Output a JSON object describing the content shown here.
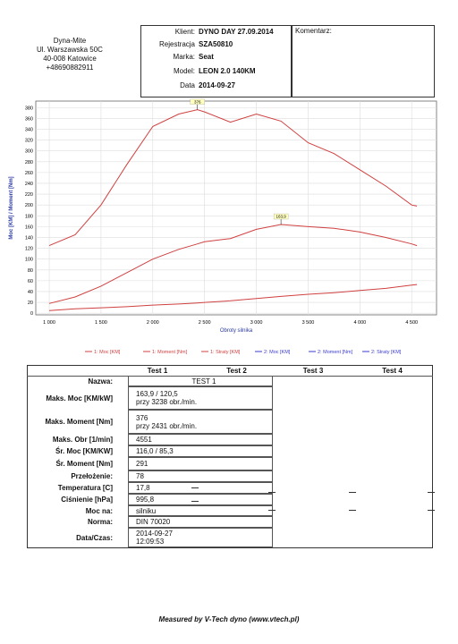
{
  "company": {
    "lines": [
      "Dyna-Mite",
      "Ul. Warszawska 50C",
      "40-008 Katowice",
      "+48690882911"
    ]
  },
  "info": [
    {
      "label": "Klient:",
      "value": "DYNO DAY 27.09.2014"
    },
    {
      "label": "Rejestracja",
      "value": "SZA50810"
    },
    {
      "label": "Marka:",
      "value": "Seat"
    },
    {
      "label": "Model:",
      "value": "LEON 2.0 140KM"
    },
    {
      "label": "Data",
      "value": "2014-09-27"
    }
  ],
  "comment_label": "Komentarz:",
  "chart_data": {
    "type": "line",
    "y_label": "Moc [KM] / Moment [Nm]",
    "x_label": "Obroty silnika",
    "x": [
      1000,
      1250,
      1500,
      1750,
      2000,
      2250,
      2431,
      2500,
      2750,
      3000,
      3238,
      3500,
      3750,
      4000,
      4250,
      4500,
      4551
    ],
    "series": [
      {
        "name": "1: Moc [KM]",
        "color": "#d04040",
        "values": [
          18,
          30,
          50,
          75,
          100,
          118,
          128,
          132,
          138,
          155,
          163.9,
          160,
          157,
          150,
          140,
          128,
          125
        ]
      },
      {
        "name": "1: Moment [Nm]",
        "color": "#d04040",
        "values": [
          125,
          145,
          200,
          275,
          345,
          368,
          376,
          372,
          353,
          368,
          355,
          315,
          295,
          265,
          235,
          200,
          198
        ]
      },
      {
        "name": "1: Straty [KM]",
        "color": "#d04040",
        "values": [
          5,
          8,
          10,
          12,
          15,
          17,
          19,
          20,
          23,
          27,
          31,
          35,
          38,
          42,
          46,
          52,
          53
        ]
      },
      {
        "name": "2: Moc [KM]",
        "color": "#3a3ad0",
        "values": [
          null,
          null,
          null,
          null,
          null,
          null,
          null,
          null,
          null,
          null,
          null,
          null,
          null,
          null,
          null,
          null,
          null
        ]
      },
      {
        "name": "2: Moment [Nm]",
        "color": "#3a3ad0",
        "values": [
          null,
          null,
          null,
          null,
          null,
          null,
          null,
          null,
          null,
          null,
          null,
          null,
          null,
          null,
          null,
          null,
          null
        ]
      },
      {
        "name": "2: Straty [KM]",
        "color": "#3a3ad0",
        "values": [
          null,
          null,
          null,
          null,
          null,
          null,
          null,
          null,
          null,
          null,
          null,
          null,
          null,
          null,
          null,
          null,
          null
        ]
      }
    ],
    "annotations": [
      {
        "text": "376",
        "x": 2431,
        "y": 376
      },
      {
        "text": "163,9",
        "x": 3238,
        "y": 163.9
      }
    ],
    "xlim": [
      870,
      4740
    ],
    "ylim": [
      -3,
      392
    ],
    "xticks": [
      {
        "value": 1000,
        "label": "1 000"
      },
      {
        "value": 1500,
        "label": "1 500"
      },
      {
        "value": 2000,
        "label": "2 000"
      },
      {
        "value": 2500,
        "label": "2 500"
      },
      {
        "value": 3000,
        "label": "3 000"
      },
      {
        "value": 3500,
        "label": "3 500"
      },
      {
        "value": 4000,
        "label": "4 000"
      },
      {
        "value": 4500,
        "label": "4 500"
      }
    ],
    "yticks": [
      0,
      20,
      40,
      60,
      80,
      100,
      120,
      140,
      160,
      180,
      200,
      220,
      240,
      260,
      280,
      300,
      320,
      340,
      360,
      380
    ],
    "grid": true
  },
  "table": {
    "columns": [
      "Test 1",
      "Test 2",
      "Test 3",
      "Test 4"
    ],
    "rows": [
      {
        "label": "Nazwa:",
        "value": [
          "TEST 1"
        ]
      },
      {
        "label": "Maks. Moc [KM/kW]",
        "value": [
          "163,9 / 120,5",
          "przy 3238 obr./min."
        ]
      },
      {
        "label": "Maks. Moment [Nm]",
        "value": [
          "376",
          "przy 2431 obr./min."
        ]
      },
      {
        "label": "Maks. Obr [1/min]",
        "value": [
          "4551"
        ]
      },
      {
        "label": "Śr. Moc [KM/KW]",
        "value": [
          "116,0 / 85,3"
        ]
      },
      {
        "label": "Śr. Moment [Nm]",
        "value": [
          "291"
        ]
      },
      {
        "label": "Przełożenie:",
        "value": [
          "78"
        ]
      },
      {
        "label": "Temperatura [C]",
        "value": [
          "17,8"
        ]
      },
      {
        "label": "Ciśnienie [hPa]",
        "value": [
          "995,8"
        ]
      },
      {
        "label": "Moc na:",
        "value": [
          "silniku"
        ]
      },
      {
        "label": "Norma:",
        "value": [
          "DIN 70020"
        ]
      },
      {
        "label": "Data/Czas:",
        "value": [
          "2014-09-27",
          "12:09:53"
        ]
      }
    ]
  },
  "footer": "Measured by V-Tech dyno (www.vtech.pl)"
}
